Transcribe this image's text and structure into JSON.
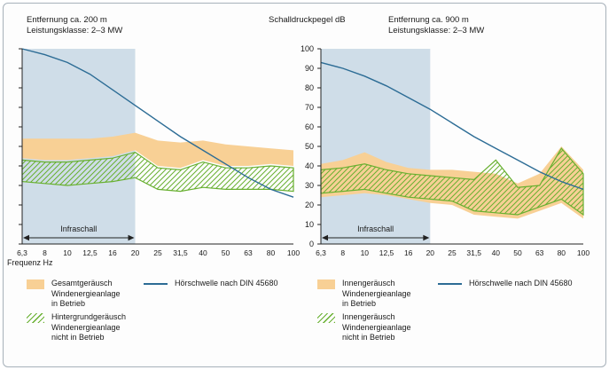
{
  "colors": {
    "band_orange": "#F8D095",
    "green": "#68B030",
    "threshold_blue": "#2C6C95",
    "infra_region": "#CFDDE8",
    "axis": "#222222",
    "text": "#1a1a1a",
    "frame_border": "#A7B1BA"
  },
  "chart_data": [
    {
      "id": "left-200m",
      "type": "area",
      "title": "Entfernung ca. 200 m",
      "subtitle": "Leistungsklasse: 2–3 MW",
      "xlabel": "Frequenz Hz",
      "ylabel": "Schalldruckpegel dB",
      "categories": [
        "6,3",
        "8",
        "10",
        "12,5",
        "16",
        "20",
        "25",
        "31,5",
        "40",
        "50",
        "63",
        "80",
        "100"
      ],
      "ylim": [
        0,
        100
      ],
      "y_tick_step": 10,
      "show_y_tick_labels": false,
      "grid": false,
      "infrasound_region": {
        "label": "Infraschall",
        "from": "6,3",
        "to": "20"
      },
      "series": [
        {
          "name": "Gesamtgeräusch Windenergieanlage in Betrieb",
          "type": "band",
          "color": "#F8D095",
          "upper": [
            54,
            54,
            54,
            54,
            55,
            57,
            53,
            52,
            53,
            51,
            50,
            49,
            48
          ],
          "lower": [
            44,
            43,
            43,
            44,
            45,
            48,
            40,
            39,
            43,
            40,
            40,
            41,
            40
          ]
        },
        {
          "name": "Hintergrundgeräusch Windenergieanlage nicht in Betrieb",
          "type": "band_hatched",
          "color": "#68B030",
          "upper": [
            43,
            42,
            42,
            43,
            44,
            47,
            39,
            38,
            42,
            39,
            39,
            40,
            39
          ],
          "lower": [
            32,
            31,
            30,
            31,
            32,
            34,
            28,
            27,
            29,
            28,
            28,
            28,
            27
          ]
        },
        {
          "name": "Hörschwelle nach DIN 45680",
          "type": "line",
          "color": "#2C6C95",
          "values": [
            100,
            97,
            93,
            87,
            79,
            71,
            63,
            55,
            48,
            41,
            34,
            28,
            24
          ]
        }
      ]
    },
    {
      "id": "right-900m",
      "type": "area",
      "title": "Entfernung ca. 900 m",
      "subtitle": "Leistungsklasse: 2–3 MW",
      "xlabel": "Frequenz Hz",
      "ylabel": "Schalldruckpegel dB",
      "categories": [
        "6,3",
        "8",
        "10",
        "12,5",
        "16",
        "20",
        "25",
        "31,5",
        "40",
        "50",
        "63",
        "80",
        "100"
      ],
      "ylim": [
        0,
        100
      ],
      "y_tick_step": 10,
      "show_y_tick_labels": true,
      "grid": false,
      "infrasound_region": {
        "label": "Infraschall",
        "from": "6,3",
        "to": "20"
      },
      "series": [
        {
          "name": "Innengeräusch Windenergieanlage in Betrieb",
          "type": "band",
          "color": "#F8D095",
          "upper": [
            41,
            43,
            47,
            42,
            39,
            38,
            38,
            37,
            36,
            31,
            36,
            50,
            38
          ],
          "lower": [
            24,
            25,
            26,
            25,
            23,
            21,
            20,
            15,
            14,
            13,
            17,
            21,
            13
          ]
        },
        {
          "name": "Innengeräusch Windenergieanlage nicht in Betrieb",
          "type": "band_hatched",
          "color": "#68B030",
          "upper": [
            38,
            39,
            41,
            38,
            36,
            35,
            34,
            33,
            43,
            29,
            30,
            49,
            36
          ],
          "lower": [
            26,
            27,
            28,
            26,
            24,
            23,
            22,
            17,
            16,
            15,
            19,
            23,
            15
          ]
        },
        {
          "name": "Hörschwelle nach DIN 45680",
          "type": "line",
          "color": "#2C6C95",
          "values": [
            93,
            90,
            86,
            81,
            75,
            69,
            62,
            55,
            49,
            43,
            37,
            32,
            28
          ]
        }
      ]
    }
  ],
  "legend": {
    "left": {
      "items": [
        {
          "swatch": "orange-band",
          "lines": [
            "Gesamtgeräusch",
            "Windenergieanlage",
            "in Betrieb"
          ]
        },
        {
          "swatch": "green-hatch",
          "lines": [
            "Hintergrundgeräusch",
            "Windenergieanlage",
            "nicht in Betrieb"
          ]
        }
      ],
      "threshold_label": "Hörschwelle nach DIN 45680"
    },
    "right": {
      "items": [
        {
          "swatch": "orange-band",
          "lines": [
            "Innengeräusch",
            "Windenergieanlage",
            "in Betrieb"
          ]
        },
        {
          "swatch": "green-hatch",
          "lines": [
            "Innengeräusch",
            "Windenergieanlage",
            "nicht in Betrieb"
          ]
        }
      ],
      "threshold_label": "Hörschwelle nach DIN 45680"
    }
  }
}
